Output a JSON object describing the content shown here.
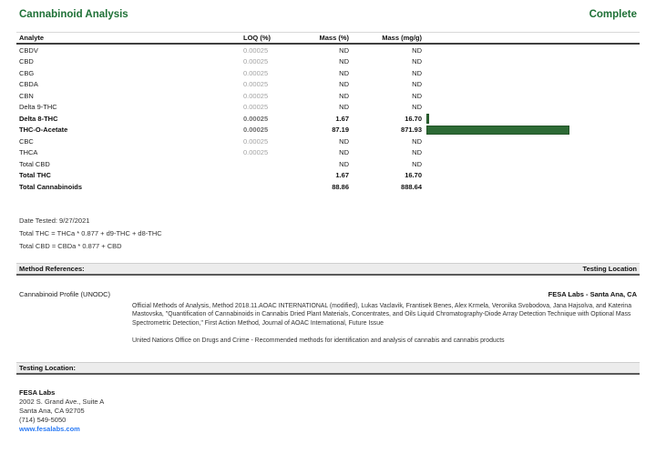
{
  "header": {
    "title": "Cannabinoid Analysis",
    "status": "Complete"
  },
  "table": {
    "columns": {
      "analyte": "Analyte",
      "loq": "LOQ (%)",
      "mass_pct": "Mass (%)",
      "mass_mg": "Mass (mg/g)"
    },
    "rows": [
      {
        "analyte": "CBDV",
        "loq": "0.00025",
        "mass_pct": "ND",
        "mass_mg": "ND",
        "bold": false,
        "bar_value": 0
      },
      {
        "analyte": "CBD",
        "loq": "0.00025",
        "mass_pct": "ND",
        "mass_mg": "ND",
        "bold": false,
        "bar_value": 0
      },
      {
        "analyte": "CBG",
        "loq": "0.00025",
        "mass_pct": "ND",
        "mass_mg": "ND",
        "bold": false,
        "bar_value": 0
      },
      {
        "analyte": "CBDA",
        "loq": "0.00025",
        "mass_pct": "ND",
        "mass_mg": "ND",
        "bold": false,
        "bar_value": 0
      },
      {
        "analyte": "CBN",
        "loq": "0.00025",
        "mass_pct": "ND",
        "mass_mg": "ND",
        "bold": false,
        "bar_value": 0
      },
      {
        "analyte": "Delta 9-THC",
        "loq": "0.00025",
        "mass_pct": "ND",
        "mass_mg": "ND",
        "bold": false,
        "bar_value": 0
      },
      {
        "analyte": "Delta 8-THC",
        "loq": "0.00025",
        "mass_pct": "1.67",
        "mass_mg": "16.70",
        "bold": true,
        "bar_value": 16.7
      },
      {
        "analyte": "THC-O-Acetate",
        "loq": "0.00025",
        "mass_pct": "87.19",
        "mass_mg": "871.93",
        "bold": true,
        "bar_value": 871.93
      },
      {
        "analyte": "CBC",
        "loq": "0.00025",
        "mass_pct": "ND",
        "mass_mg": "ND",
        "bold": false,
        "bar_value": 0
      },
      {
        "analyte": "THCA",
        "loq": "0.00025",
        "mass_pct": "ND",
        "mass_mg": "ND",
        "bold": false,
        "bar_value": 0
      },
      {
        "analyte": "Total CBD",
        "loq": "",
        "mass_pct": "ND",
        "mass_mg": "ND",
        "bold": false,
        "bar_value": 0
      },
      {
        "analyte": "Total THC",
        "loq": "",
        "mass_pct": "1.67",
        "mass_mg": "16.70",
        "bold": true,
        "bar_value": 0
      },
      {
        "analyte": "Total Cannabinoids",
        "loq": "",
        "mass_pct": "88.86",
        "mass_mg": "888.64",
        "bold": true,
        "bar_value": 0
      }
    ],
    "bar_axis_max": 1000
  },
  "notes": {
    "date_tested": "Date Tested: 9/27/2021",
    "total_thc_formula": "Total THC = THCa * 0.877 + d9-THC + d8-THC",
    "total_cbd_formula": "Total CBD = CBDa * 0.877 + CBD"
  },
  "method_section": {
    "header_left": "Method References:",
    "header_right": "Testing Location",
    "profile_label": "Cannabinoid Profile (UNODC)",
    "location_value": "FESA Labs - Santa Ana, CA",
    "reference_paragraph": "Official Methods of Analysis, Method 2018.11.AOAC INTERNATIONAL (modified), Lukas Vaclavik, Frantisek Benes, Alex Krmela, Veronika Svobodova, Jana Hajsolva, and Katerina Mastovska, \"Quantification of Cannabinoids in Cannabis Dried Plant Materials, Concentrates, and Oils Liquid Chromatography-Diode Array Detection Technique with Optional Mass Spectrometric Detection,\" First Action Method, Journal of AOAC International, Future Issue",
    "unodc_line": "United Nations Office on Drugs and Crime - Recommended methods for identification and analysis of cannabis and cannabis products"
  },
  "testing_section": {
    "header": "Testing Location:",
    "lab_name": "FESA Labs",
    "address_line1": "2002 S. Grand Ave., Suite A",
    "address_line2": "Santa Ana, CA 92705",
    "phone": "(714) 549-5050",
    "website": "www.fesalabs.com"
  },
  "colors": {
    "accent_green": "#1e7036",
    "bar_green": "#2d6a35",
    "link_blue": "#2b7bf5"
  }
}
